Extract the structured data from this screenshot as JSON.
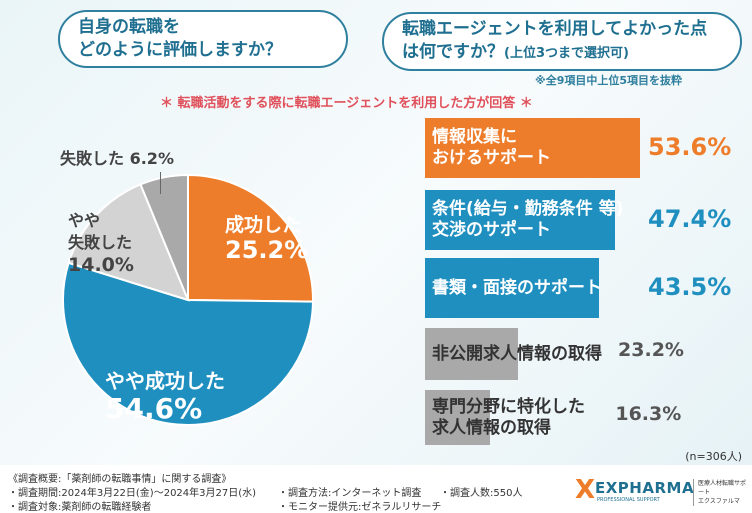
{
  "questions": {
    "left": [
      "自身の転職を",
      "どのように評価しますか？"
    ],
    "right": [
      "転職エージェントを利用してよかった点",
      "は何ですか？",
      "(上位3つまで選択可)"
    ]
  },
  "note": "※全9項目中上位5項目を抜粋",
  "subtitle": "＊ 転職活動をする際に転職エージェントを利用した方が回答 ＊",
  "sample": "(n=306人)",
  "colors": {
    "orange": "#ee7d2b",
    "blue": "#1f8fc0",
    "light_gray": "#d3d3d3",
    "gray": "#a9a9a9"
  },
  "chart_data": [
    {
      "type": "pie",
      "start": "top",
      "direction": "clockwise",
      "slices": [
        {
          "label": "成功した",
          "value": 25.2,
          "display": "25.2%",
          "color": "#ee7d2b"
        },
        {
          "label": "やや成功した",
          "value": 54.6,
          "display": "54.6%",
          "color": "#1f8fc0"
        },
        {
          "label": "やや失敗した",
          "value": 14.0,
          "display": "14.0%",
          "color": "#d3d3d3"
        },
        {
          "label": "失敗した",
          "value": 6.2,
          "display": "6.2%",
          "color": "#a9a9a9"
        }
      ]
    },
    {
      "type": "bar",
      "orientation": "horizontal",
      "bars": [
        {
          "label": [
            "情報収集に",
            "おけるサポート"
          ],
          "value": 53.6,
          "display": "53.6%",
          "color": "#ee7d2b"
        },
        {
          "label": [
            "条件(給与・勤務条件 等)",
            "交渉のサポート"
          ],
          "value": 47.4,
          "display": "47.4%",
          "color": "#1f8fc0"
        },
        {
          "label": [
            "書類・面接のサポート"
          ],
          "value": 43.5,
          "display": "43.5%",
          "color": "#1f8fc0"
        },
        {
          "label": [
            "非公開求人情報の取得"
          ],
          "value": 23.2,
          "display": "23.2%",
          "color": "#a9a9a9"
        },
        {
          "label": [
            "専門分野に特化した",
            "求人情報の取得"
          ],
          "value": 16.3,
          "display": "16.3%",
          "color": "#a9a9a9"
        }
      ]
    }
  ],
  "footer": {
    "title": "《調査概要:「薬剤師の転職事情」に関する調査》",
    "period": "・調査期間:2024年3月22日(金)～2024年3月27日(水)",
    "target": "・調査対象:薬剤師の転職経験者",
    "method": "・調査方法:インターネット調査",
    "monitor": "・モニター提供元:ゼネラルリサーチ",
    "count": "・調査人数:550人"
  },
  "logo": {
    "brand": "EXPHARMA",
    "tagline": "PROFESSIONAL SUPPORT",
    "side": [
      "医療人材転職サポート",
      "エクスファルマ"
    ]
  }
}
